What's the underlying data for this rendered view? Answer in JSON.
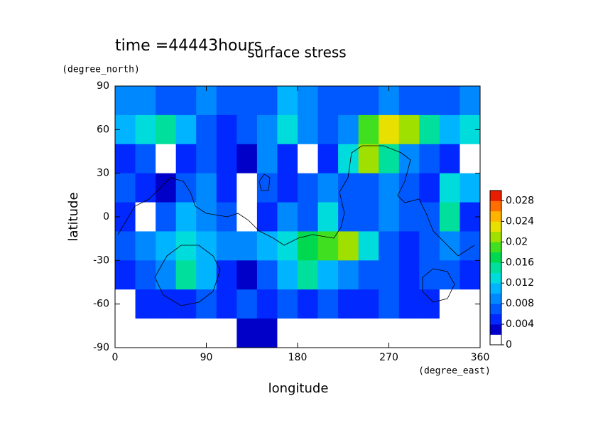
{
  "chart_data": {
    "type": "contour",
    "title": "surface stress",
    "subtitle": "time =44443hours",
    "x_label": "longitude",
    "x_unit": "(degree_east)",
    "y_label": "latitude",
    "y_unit": "(degree_north)",
    "xlim": [
      0,
      360
    ],
    "xticks": [
      0,
      90,
      180,
      270,
      360
    ],
    "ylim": [
      -90,
      90
    ],
    "yticks": [
      90,
      60,
      30,
      0,
      -30,
      -60,
      -90
    ],
    "zlim": [
      0,
      0.03
    ],
    "zticks": [
      0,
      0.004,
      0.008,
      0.012,
      0.016,
      0.02,
      0.024,
      0.028
    ],
    "colors": [
      "#ffffff",
      "#0000c8",
      "#0028ff",
      "#0058ff",
      "#0088ff",
      "#00b4ff",
      "#00dcdc",
      "#00e09c",
      "#00d850",
      "#40e020",
      "#a0e000",
      "#e8e000",
      "#ffb400",
      "#ff6e00",
      "#e81e00"
    ],
    "x": [
      10,
      30,
      50,
      70,
      90,
      110,
      130,
      150,
      170,
      190,
      210,
      230,
      250,
      270,
      290,
      310,
      330,
      350
    ],
    "y": [
      80,
      60,
      40,
      20,
      0,
      -20,
      -40,
      -60,
      -80
    ],
    "z": [
      [
        0.008,
        0.008,
        0.006,
        0.006,
        0.008,
        0.006,
        0.006,
        0.006,
        0.01,
        0.008,
        0.006,
        0.006,
        0.006,
        0.008,
        0.006,
        0.006,
        0.006,
        0.008
      ],
      [
        0.01,
        0.012,
        0.014,
        0.01,
        0.006,
        0.004,
        0.006,
        0.008,
        0.012,
        0.008,
        0.006,
        0.008,
        0.018,
        0.022,
        0.02,
        0.014,
        0.01,
        0.012
      ],
      [
        0.004,
        0.006,
        0.001,
        0.004,
        0.006,
        0.004,
        0.002,
        0.008,
        0.004,
        0.001,
        0.004,
        0.012,
        0.02,
        0.014,
        0.008,
        0.006,
        0.004,
        0.001
      ],
      [
        0.006,
        0.004,
        0.002,
        0.006,
        0.008,
        0.004,
        0.001,
        0.006,
        0.004,
        0.006,
        0.008,
        0.006,
        0.006,
        0.008,
        0.006,
        0.004,
        0.012,
        0.01
      ],
      [
        0.004,
        0.001,
        0.006,
        0.01,
        0.008,
        0.006,
        0.001,
        0.004,
        0.008,
        0.006,
        0.012,
        0.006,
        0.006,
        0.008,
        0.006,
        0.006,
        0.014,
        0.004
      ],
      [
        0.006,
        0.008,
        0.01,
        0.012,
        0.01,
        0.008,
        0.008,
        0.01,
        0.012,
        0.016,
        0.018,
        0.02,
        0.012,
        0.006,
        0.004,
        0.006,
        0.008,
        0.006
      ],
      [
        0.004,
        0.006,
        0.008,
        0.014,
        0.01,
        0.004,
        0.002,
        0.006,
        0.01,
        0.014,
        0.01,
        0.008,
        0.006,
        0.006,
        0.004,
        0.006,
        0.006,
        0.004
      ],
      [
        0.001,
        0.004,
        0.004,
        0.004,
        0.006,
        0.004,
        0.006,
        0.004,
        0.006,
        0.004,
        0.006,
        0.004,
        0.004,
        0.006,
        0.004,
        0.004,
        0.001,
        0.001
      ],
      [
        0.001,
        0.001,
        0.001,
        0.001,
        0.001,
        0.001,
        0.002,
        0.002,
        0.001,
        0.001,
        0.001,
        0.001,
        0.001,
        0.001,
        0.001,
        0.001,
        0.001,
        0.001
      ]
    ]
  }
}
